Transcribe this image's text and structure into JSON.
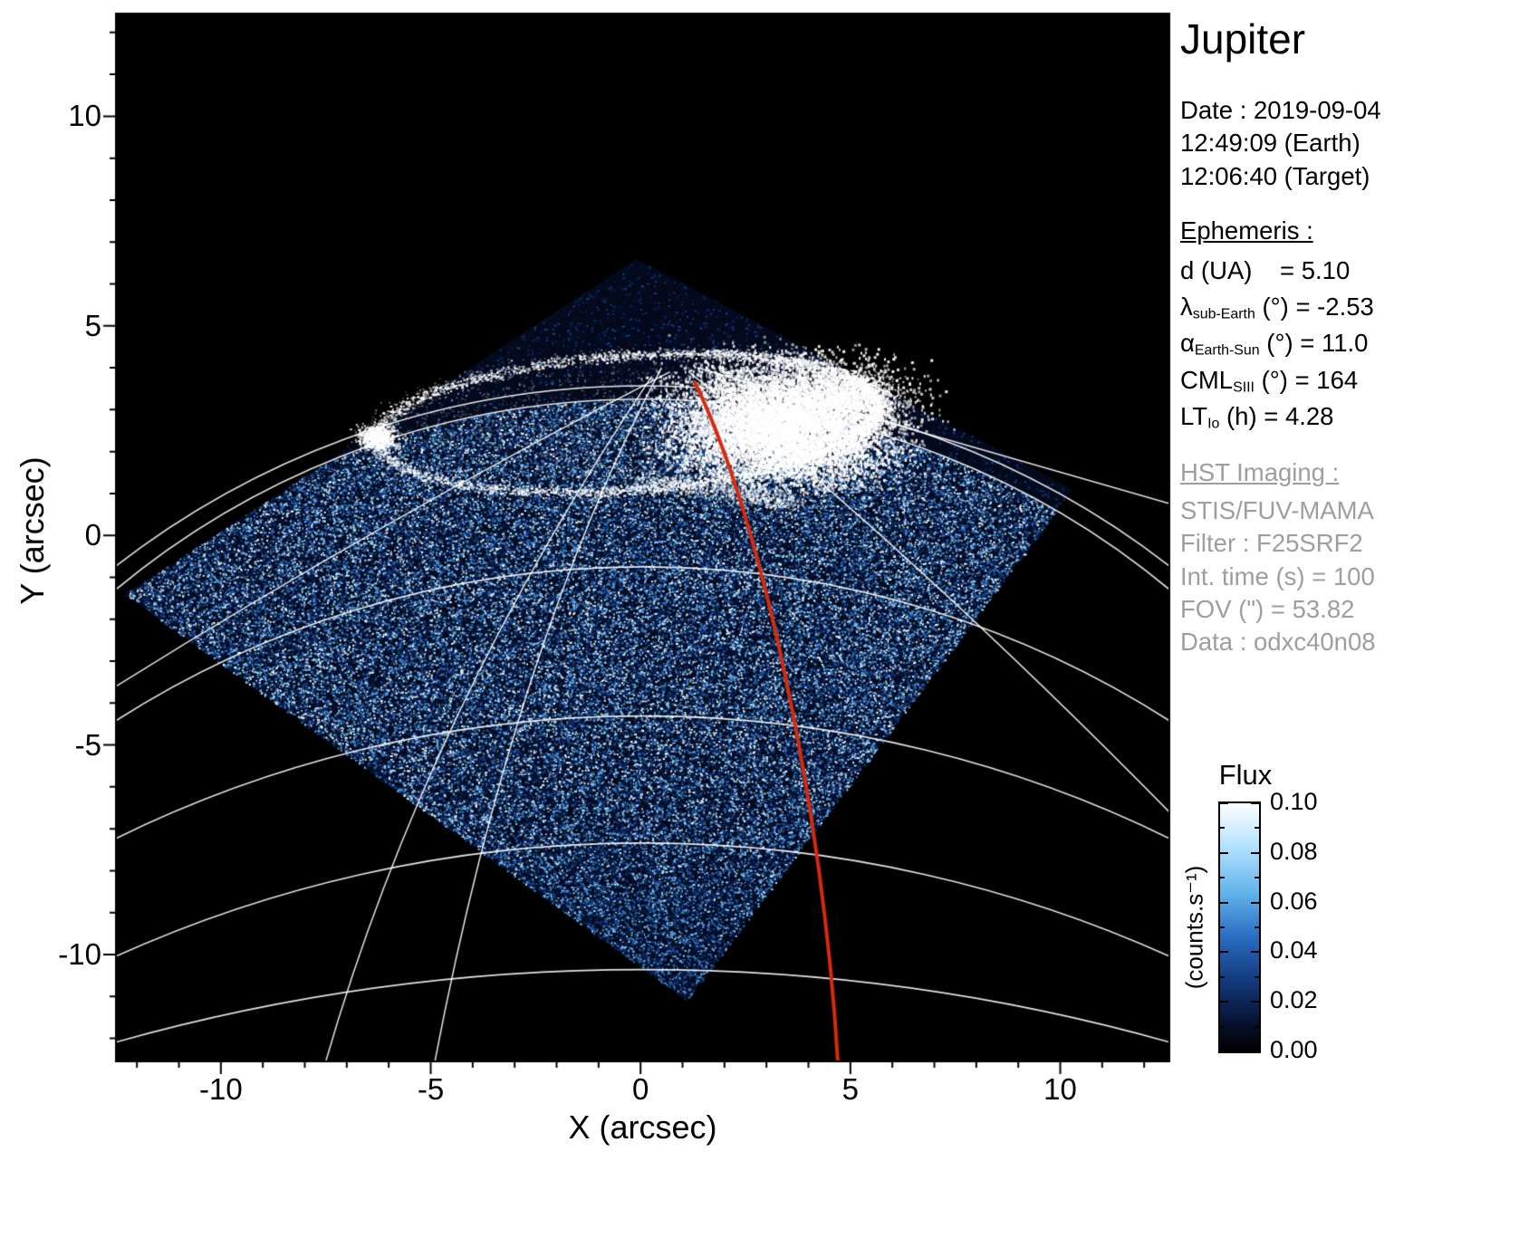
{
  "chart_data": {
    "type": "heatmap",
    "title": "Jupiter",
    "xlabel": "X (arcsec)",
    "ylabel": "Y (arcsec)",
    "xlim": [
      -12.5,
      12.6
    ],
    "ylim": [
      -12.55,
      12.45
    ],
    "x_ticks": [
      -10,
      -5,
      0,
      5,
      10
    ],
    "y_ticks": [
      10,
      5,
      0,
      -5,
      -10
    ],
    "grid": false,
    "background": "#000000",
    "colormap_stops": [
      "#000208",
      "#0a1c4e",
      "#1d5bb0",
      "#4f9fe0",
      "#a8dcf8",
      "#ffffff"
    ],
    "colorbar": {
      "title": "Flux",
      "unit": "(counts.s⁻¹)",
      "tick_labels": [
        "0.10",
        "0.08",
        "0.06",
        "0.04",
        "0.02",
        "0.00"
      ],
      "vmin": 0.0,
      "vmax": 0.1
    },
    "features": {
      "fov_corners": [
        [
          -12.3,
          -1.4
        ],
        [
          -0.1,
          6.6
        ],
        [
          10.3,
          1.1
        ],
        [
          1.1,
          -11.1
        ]
      ],
      "aurora_oval": {
        "center": [
          -0.34,
          2.7
        ],
        "rx": 6.0,
        "ry": 1.6,
        "tilt_deg": -4
      },
      "aurora_blob": {
        "center": [
          3.45,
          2.7
        ],
        "rx": 1.9,
        "ry": 1.05
      },
      "aurora_clump": [
        5.0,
        3.3
      ],
      "aurora_spot": [
        -6.3,
        2.35
      ],
      "lat_arcs": [
        {
          "apex_y": 3.57,
          "sag": 4.3
        },
        {
          "apex_y": 3.25,
          "sag": 4.54
        },
        {
          "apex_y": -0.75,
          "sag": 3.67
        },
        {
          "apex_y": -4.31,
          "sag": 2.92
        },
        {
          "apex_y": -7.34,
          "sag": 2.7
        },
        {
          "apex_y": -10.36,
          "sag": 1.73
        }
      ],
      "meridians": [
        [
          [
            -4.9,
            -12.55
          ],
          [
            -3.0,
            -2.6
          ],
          [
            0.5,
            4.0
          ]
        ],
        [
          [
            -12.5,
            -3.6
          ],
          [
            -6.0,
            0.45
          ],
          [
            0.7,
            3.9
          ]
        ],
        [
          [
            12.6,
            0.76
          ],
          [
            6.95,
            2.4
          ],
          [
            1.35,
            4.0
          ]
        ],
        [
          [
            12.6,
            -6.6
          ],
          [
            6.5,
            -0.4
          ],
          [
            1.15,
            3.9
          ]
        ],
        [
          [
            -7.5,
            -12.55
          ],
          [
            -5.1,
            -4.2
          ],
          [
            0.27,
            3.8
          ]
        ]
      ],
      "footprint_line": {
        "color": "#d62a0d",
        "p0": [
          1.28,
          3.68
        ],
        "c1": [
          2.9,
          0.4
        ],
        "c2": [
          4.35,
          -6.6
        ],
        "p1": [
          4.7,
          -12.55
        ]
      }
    },
    "description": "HST STIS/FUV-MAMA ultraviolet image of Jupiter's northern aurora: diamond-shaped detector field of view filled with blue photon-count speckle, bright white auroral oval near the pole, white planetary graticule arcs, and a red magnetic footprint contour."
  },
  "info_panel": {
    "title": "Jupiter",
    "date": "Date : 2019-09-04",
    "time_earth": "12:49:09 (Earth)",
    "time_target": "12:06:40 (Target)",
    "ephemeris_heading": "Ephemeris :",
    "ephemeris": [
      {
        "pre": "d (UA)",
        "sub": "",
        "post": "    = 5.10"
      },
      {
        "pre": "λ",
        "sub": "sub-Earth",
        "post": " (°) = -2.53"
      },
      {
        "pre": "α",
        "sub": "Earth-Sun",
        "post": " (°) = 11.0"
      },
      {
        "pre": "CML",
        "sub": "SIII",
        "post": " (°) = 164"
      },
      {
        "pre": "LT",
        "sub": "Io",
        "post": " (h) = 4.28"
      }
    ],
    "hst_heading": "HST Imaging :",
    "hst_lines": [
      "STIS/FUV-MAMA",
      "Filter : F25SRF2",
      "Int. time (s) = 100",
      "FOV (\") = 53.82",
      "Data : odxc40n08"
    ]
  }
}
